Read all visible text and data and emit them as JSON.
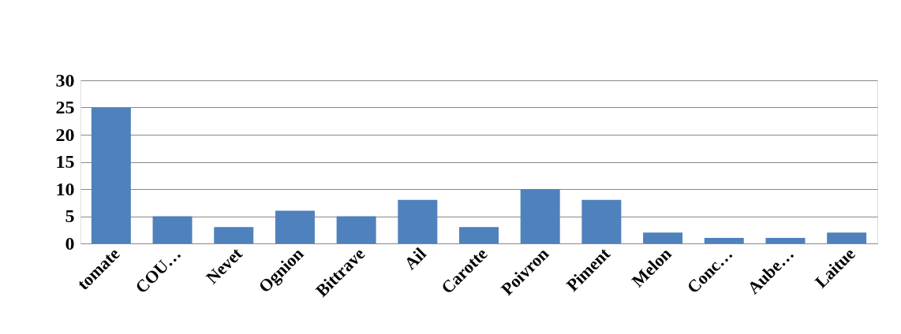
{
  "chart_data": {
    "type": "bar",
    "categories": [
      "tomate",
      "COU…",
      "Nevet",
      "Ognion",
      "Bittrave",
      "Ail",
      "Carotte",
      "Poivron",
      "Piment",
      "Melon",
      "Conc…",
      "Aube…",
      "Laitue"
    ],
    "values": [
      25,
      5,
      3,
      6,
      5,
      8,
      3,
      10,
      8,
      2,
      1,
      1,
      2
    ],
    "color": "#4f81bd",
    "ylim": [
      0,
      30
    ],
    "yticks": [
      0,
      5,
      10,
      15,
      20,
      25,
      30
    ],
    "grid": "y"
  }
}
